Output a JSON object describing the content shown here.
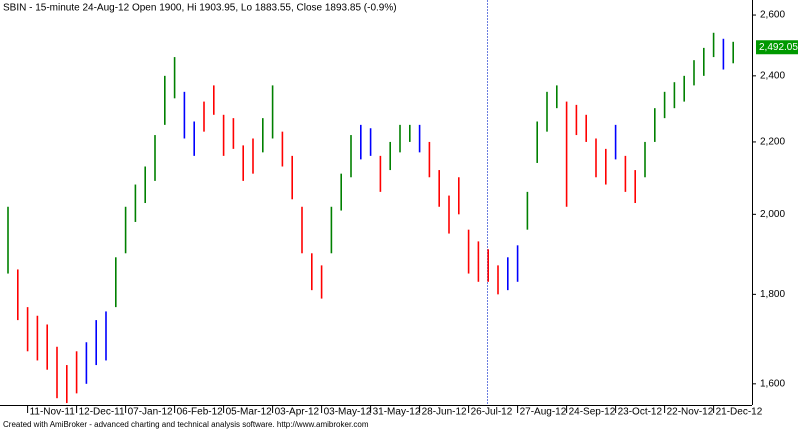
{
  "chart_data": {
    "type": "range_bar",
    "title": "SBIN - 15-minute 24-Aug-12 Open 1900, Hi 1903.95, Lo 1883.55, Close 1893.85 (-0.9%)",
    "footer": "Created with AmiBroker - advanced charting and technical analysis software. http://www.amibroker.com",
    "categories": [
      null,
      null,
      "11-Nov-11",
      null,
      null,
      null,
      null,
      "12-Dec-11",
      null,
      null,
      null,
      null,
      "07-Jan-12",
      null,
      null,
      null,
      null,
      "06-Feb-12",
      null,
      null,
      null,
      null,
      "05-Mar-12",
      null,
      null,
      null,
      null,
      "03-Apr-12",
      null,
      null,
      null,
      null,
      "03-May-12",
      null,
      null,
      null,
      null,
      "31-May-12",
      null,
      null,
      null,
      null,
      "28-Jun-12",
      null,
      null,
      null,
      null,
      "26-Jul-12",
      null,
      null,
      null,
      null,
      "27-Aug-12",
      null,
      null,
      null,
      null,
      "24-Sep-12",
      null,
      null,
      null,
      null,
      "23-Oct-12",
      null,
      null,
      null,
      null,
      "22-Nov-12",
      null,
      null,
      null,
      null,
      "21-Dec-12",
      null,
      null
    ],
    "high": [
      2020,
      1860,
      1770,
      1750,
      1730,
      1680,
      1640,
      1670,
      1690,
      1740,
      1760,
      1890,
      2020,
      2080,
      2130,
      2220,
      2400,
      2460,
      2350,
      2260,
      2320,
      2370,
      2280,
      2270,
      2190,
      2210,
      2270,
      2370,
      2230,
      2160,
      2020,
      1900,
      1870,
      2020,
      2110,
      2220,
      2250,
      2240,
      2160,
      2200,
      2250,
      2250,
      2250,
      2200,
      2120,
      2050,
      2100,
      1960,
      1930,
      1910,
      1870,
      1890,
      1920,
      2060,
      2260,
      2350,
      2370,
      2320,
      2310,
      2280,
      2210,
      2180,
      2250,
      2160,
      2120,
      2200,
      2300,
      2350,
      2380,
      2400,
      2450,
      2490,
      2540,
      2520,
      2510
    ],
    "low": [
      1850,
      1740,
      1670,
      1650,
      1630,
      1570,
      1560,
      1580,
      1600,
      1640,
      1650,
      1770,
      1900,
      1980,
      2030,
      2090,
      2250,
      2330,
      2210,
      2160,
      2230,
      2280,
      2160,
      2180,
      2090,
      2110,
      2170,
      2210,
      2130,
      2040,
      1900,
      1810,
      1790,
      1900,
      2010,
      2100,
      2150,
      2160,
      2060,
      2120,
      2170,
      2200,
      2170,
      2100,
      2020,
      1950,
      2000,
      1850,
      1830,
      1830,
      1800,
      1810,
      1830,
      1960,
      2140,
      2230,
      2300,
      2020,
      2220,
      2200,
      2100,
      2080,
      2150,
      2060,
      2030,
      2100,
      2200,
      2270,
      2300,
      2320,
      2370,
      2400,
      2460,
      2420,
      2440
    ],
    "colors": [
      "green",
      "red",
      "red",
      "red",
      "red",
      "red",
      "red",
      "red",
      "blue",
      "blue",
      "blue",
      "green",
      "green",
      "green",
      "green",
      "green",
      "green",
      "green",
      "blue",
      "blue",
      "red",
      "red",
      "red",
      "red",
      "red",
      "red",
      "green",
      "green",
      "red",
      "red",
      "red",
      "red",
      "red",
      "green",
      "green",
      "green",
      "blue",
      "blue",
      "red",
      "green",
      "green",
      "green",
      "blue",
      "red",
      "red",
      "red",
      "red",
      "red",
      "red",
      "red",
      "red",
      "blue",
      "blue",
      "green",
      "green",
      "green",
      "green",
      "red",
      "red",
      "red",
      "red",
      "red",
      "blue",
      "red",
      "red",
      "green",
      "green",
      "green",
      "green",
      "green",
      "green",
      "green",
      "green",
      "blue",
      "green"
    ],
    "last_value": 2492.05,
    "last_value_label": "2,492.05",
    "last_value_color": "#009900",
    "ylim": [
      1556,
      2652
    ],
    "log_scale": true,
    "yticks": [
      {
        "value": 1600,
        "label": "1,600"
      },
      {
        "value": 1800,
        "label": "1,800"
      },
      {
        "value": 2000,
        "label": "2,000"
      },
      {
        "value": 2200,
        "label": "2,200"
      },
      {
        "value": 2400,
        "label": "2,400"
      },
      {
        "value": 2600,
        "label": "2,600"
      }
    ]
  }
}
